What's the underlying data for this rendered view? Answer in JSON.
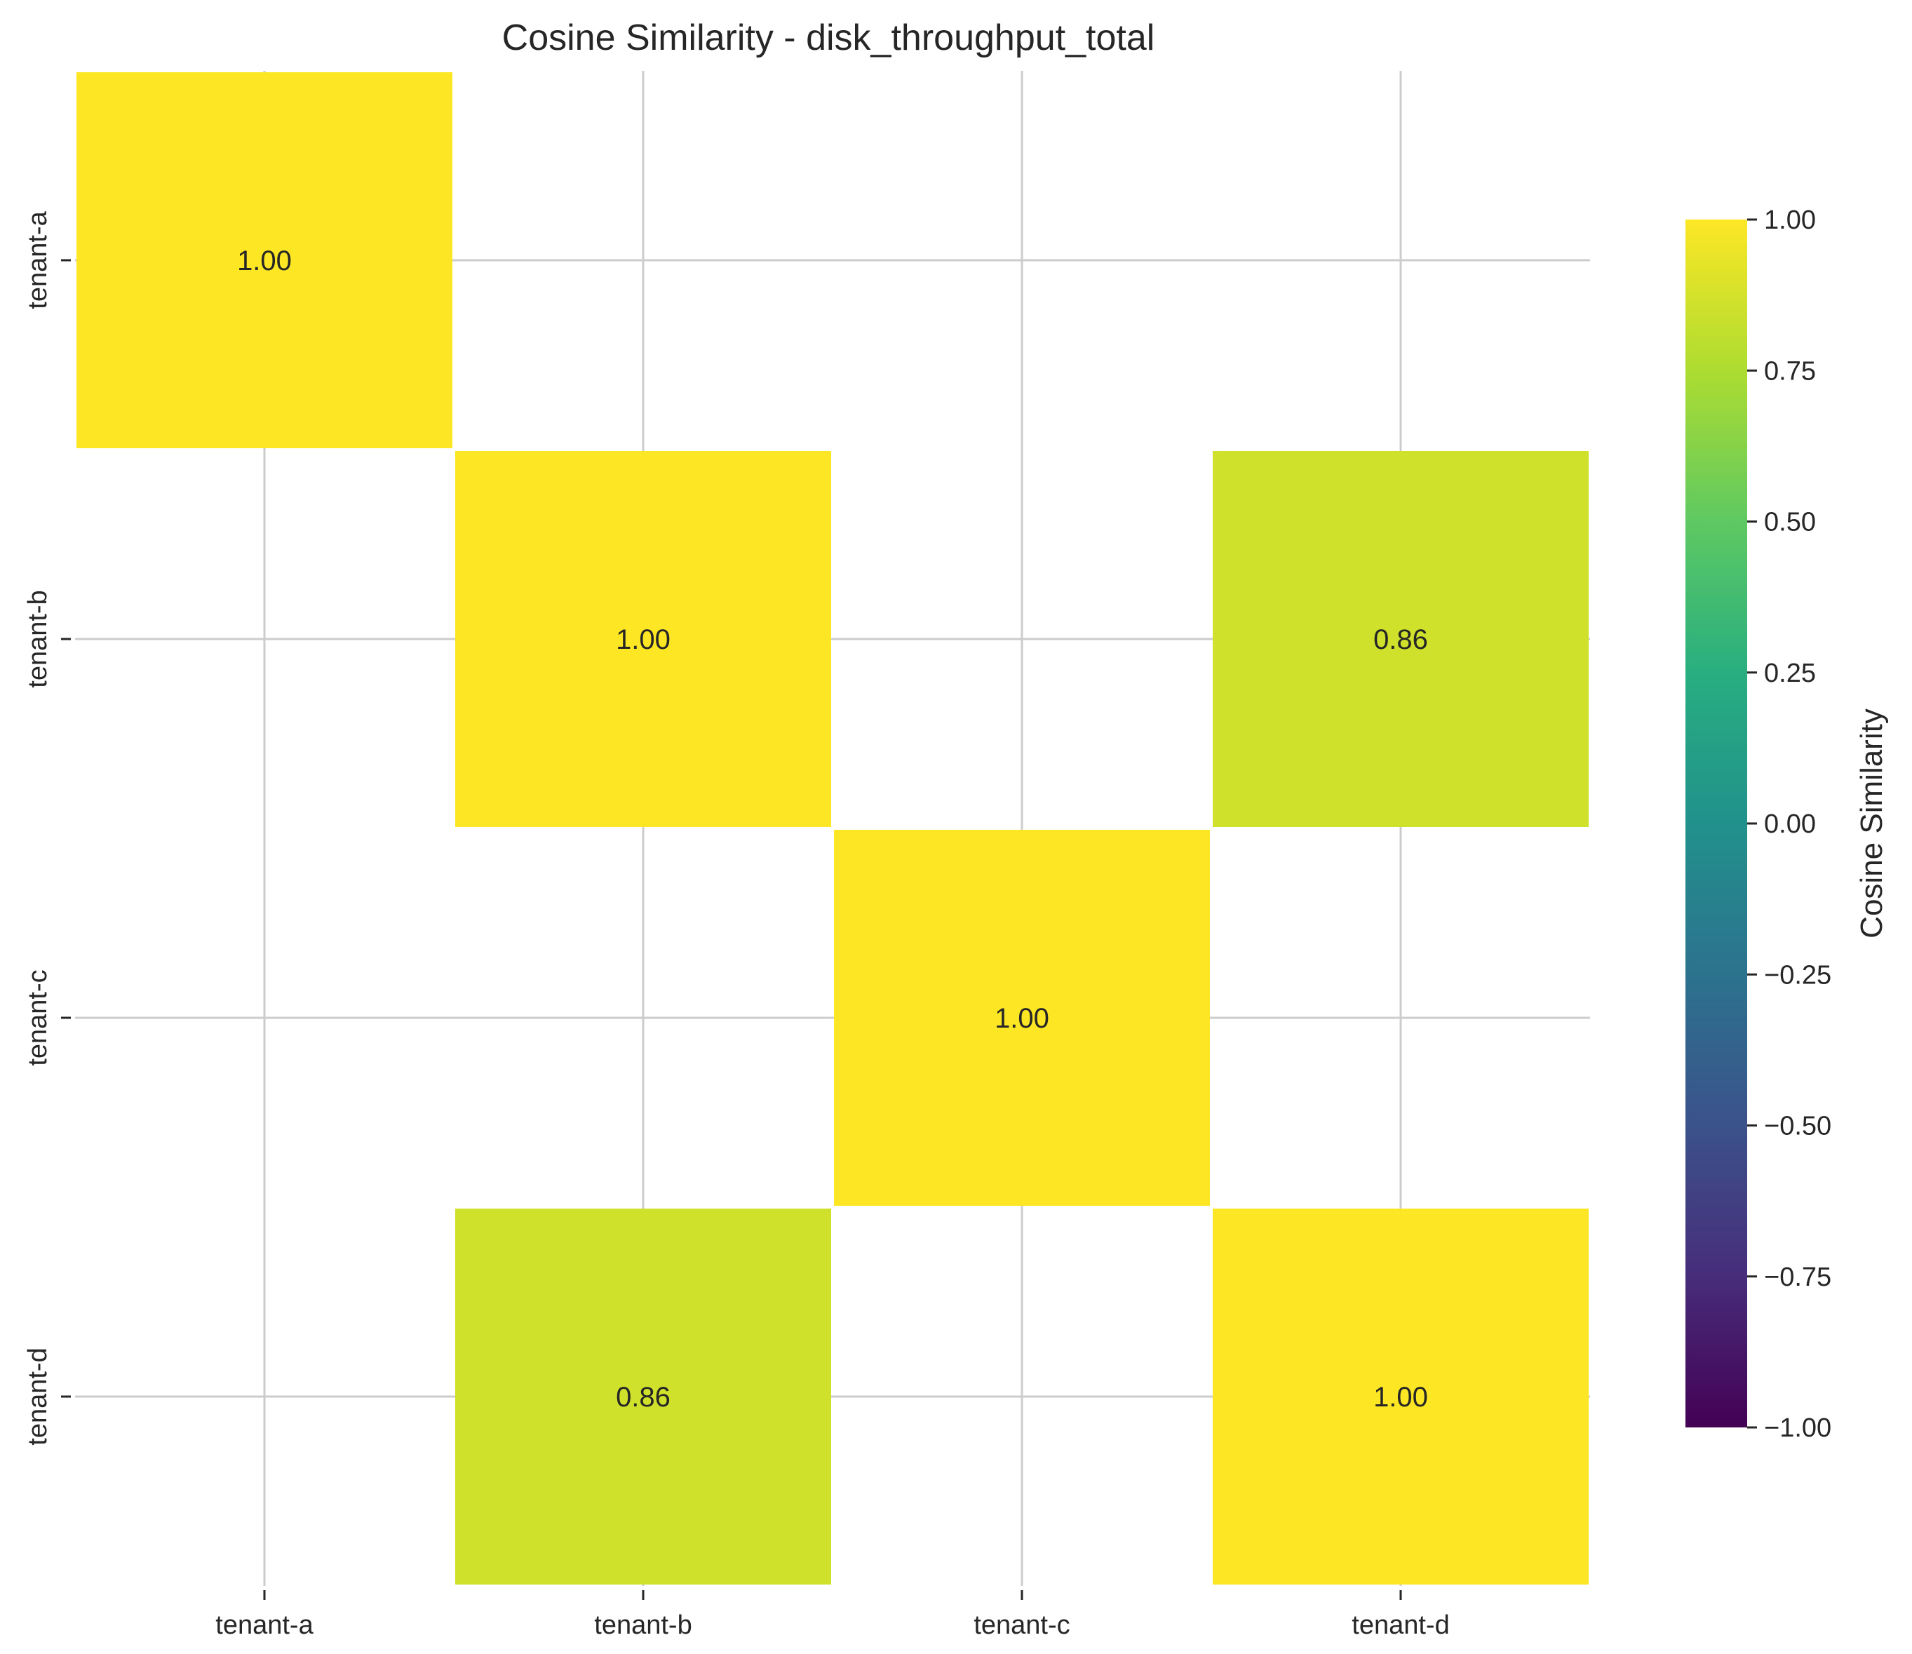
{
  "chart_data": {
    "type": "heatmap",
    "title": "Cosine Similarity - disk_throughput_total",
    "xlabel": "",
    "ylabel": "",
    "x_categories": [
      "tenant-a",
      "tenant-b",
      "tenant-c",
      "tenant-d"
    ],
    "y_categories": [
      "tenant-a",
      "tenant-b",
      "tenant-c",
      "tenant-d"
    ],
    "matrix": [
      [
        1.0,
        null,
        null,
        null
      ],
      [
        null,
        1.0,
        null,
        0.86
      ],
      [
        null,
        null,
        1.0,
        null
      ],
      [
        null,
        0.86,
        null,
        1.0
      ]
    ],
    "value_format": "0.00",
    "colormap": "viridis",
    "vmin": -1.0,
    "vmax": 1.0,
    "colorbar": {
      "label": "Cosine Similarity",
      "ticks": [
        1.0,
        0.75,
        0.5,
        0.25,
        0.0,
        -0.25,
        -0.5,
        -0.75,
        -1.0
      ],
      "tick_labels": [
        "1.00",
        "0.75",
        "0.50",
        "0.25",
        "0.00",
        "−0.25",
        "−0.50",
        "−0.75",
        "−1.00"
      ]
    },
    "grid": true,
    "colors": {
      "cell_1_00": "#fde725",
      "cell_0_86": "#d0e11c"
    }
  }
}
